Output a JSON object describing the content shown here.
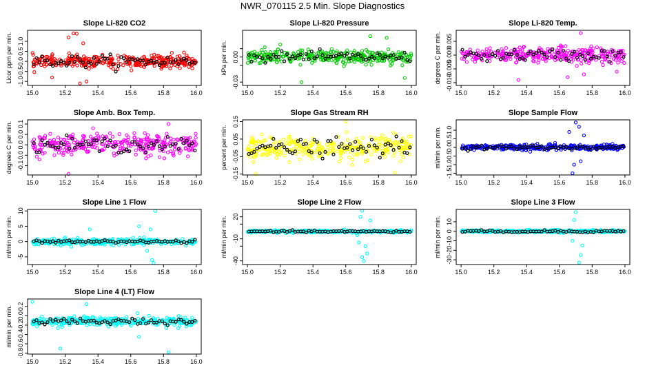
{
  "page_title": "NWR_070115  2.5 Min. Slope Diagnostics",
  "chart_data": [
    {
      "type": "scatter",
      "title": "Slope Li-820 CO2",
      "ylabel": "Licor ppm per min.",
      "color": "#ff0000",
      "xlim": [
        14.97,
        16.03
      ],
      "ylim": [
        -1.2,
        1.55
      ],
      "xticks": [
        15.0,
        15.2,
        15.4,
        15.6,
        15.8,
        16.0
      ],
      "xtick_labels": [
        "15.0",
        "15.2",
        "15.4",
        "15.6",
        "15.8",
        "16.0"
      ],
      "yticks": [
        -1.0,
        -0.5,
        0.0,
        0.5,
        1.0
      ],
      "ytick_labels": [
        "-1.0",
        "-0.5",
        "0.0",
        "0.5",
        "1.0"
      ],
      "spread": 0.28,
      "black_spread": 0.3,
      "outliers": [
        [
          15.25,
          1.4
        ],
        [
          15.27,
          1.38
        ],
        [
          15.29,
          -1.1
        ],
        [
          15.33,
          -1.0
        ],
        [
          15.22,
          1.2
        ],
        [
          15.31,
          0.9
        ],
        [
          15.12,
          -0.8
        ]
      ]
    },
    {
      "type": "scatter",
      "title": "Slope Li-820 Pressure",
      "ylabel": "kPa per min.",
      "color": "#00cc00",
      "xlim": [
        14.97,
        16.03
      ],
      "ylim": [
        -0.034,
        0.032
      ],
      "xticks": [
        15.0,
        15.2,
        15.4,
        15.6,
        15.8,
        16.0
      ],
      "xtick_labels": [
        "15.0",
        "15.2",
        "15.4",
        "15.6",
        "15.8",
        "16.0"
      ],
      "yticks": [
        -0.03,
        -0.01,
        0.0,
        0.01
      ],
      "ytick_labels": [
        "-0.03",
        "",
        "0.00",
        ""
      ],
      "spread": 0.007,
      "black_spread": 0.006,
      "outliers": [
        [
          15.33,
          -0.03
        ],
        [
          15.96,
          -0.025
        ],
        [
          15.75,
          0.025
        ],
        [
          15.85,
          0.023
        ],
        [
          15.2,
          0.015
        ]
      ]
    },
    {
      "type": "scatter",
      "title": "Slope Li-820 Temp.",
      "ylabel": "degrees C per min.",
      "color": "#ff00ff",
      "xlim": [
        14.97,
        16.03
      ],
      "ylim": [
        -0.011,
        0.009
      ],
      "xticks": [
        15.0,
        15.2,
        15.4,
        15.6,
        15.8,
        16.0
      ],
      "xtick_labels": [
        "15.0",
        "15.2",
        "15.4",
        "15.6",
        "15.8",
        "16.0"
      ],
      "yticks": [
        -0.01,
        -0.005,
        0.0,
        0.005
      ],
      "ytick_labels": [
        "-0.010",
        "-0.005",
        "0.000",
        "0.005"
      ],
      "spread": 0.0025,
      "black_spread": 0.0022,
      "outliers": [
        [
          15.73,
          0.008
        ],
        [
          15.35,
          -0.009
        ],
        [
          15.95,
          -0.006
        ],
        [
          15.65,
          -0.008
        ],
        [
          15.75,
          -0.007
        ]
      ]
    },
    {
      "type": "scatter",
      "title": "Slope Amb. Box Temp.",
      "ylabel": "degrees C per min.",
      "color": "#ff00ff",
      "xlim": [
        14.97,
        16.03
      ],
      "ylim": [
        -0.145,
        0.12
      ],
      "xticks": [
        15.0,
        15.2,
        15.4,
        15.6,
        15.8,
        16.0
      ],
      "xtick_labels": [
        "15.0",
        "15.2",
        "15.4",
        "15.6",
        "15.8",
        "16.0"
      ],
      "yticks": [
        -0.1,
        -0.05,
        0.0,
        0.05,
        0.1
      ],
      "ytick_labels": [
        "-0.1",
        "0.0",
        "0.0",
        "0.0",
        "0.1"
      ],
      "spread": 0.045,
      "black_spread": 0.035,
      "outliers": [
        [
          15.22,
          -0.14
        ],
        [
          15.83,
          0.1
        ],
        [
          15.37,
          0.08
        ]
      ]
    },
    {
      "type": "scatter",
      "title": "Slope Gas Stream RH",
      "ylabel": "percent per min.",
      "color": "#ffff00",
      "xlim": [
        14.97,
        16.03
      ],
      "ylim": [
        -0.155,
        0.16
      ],
      "xticks": [
        15.0,
        15.2,
        15.4,
        15.6,
        15.8,
        16.0
      ],
      "xtick_labels": [
        "15.0",
        "15.2",
        "15.4",
        "15.6",
        "15.8",
        "16.0"
      ],
      "yticks": [
        -0.15,
        -0.05,
        0.05,
        0.15
      ],
      "ytick_labels": [
        "-0.15",
        "-0.05",
        "0.05",
        "0.15"
      ],
      "spread": 0.06,
      "black_spread": 0.05,
      "outliers": [
        [
          15.05,
          -0.15
        ],
        [
          15.6,
          0.15
        ],
        [
          15.9,
          -0.14
        ]
      ]
    },
    {
      "type": "scatter",
      "title": "Slope Sample Flow",
      "ylabel": "ml/min per min.",
      "color": "#0000ff",
      "xlim": [
        14.97,
        16.03
      ],
      "ylim": [
        -1.6,
        1.6
      ],
      "xticks": [
        15.0,
        15.2,
        15.4,
        15.6,
        15.8,
        16.0
      ],
      "xtick_labels": [
        "15.0",
        "15.2",
        "15.4",
        "15.6",
        "15.8",
        "16.0"
      ],
      "yticks": [
        -1.5,
        -1.0,
        -0.5,
        0.0,
        0.5,
        1.0
      ],
      "ytick_labels": [
        "-1.5",
        "-1.0",
        "-0.5",
        "0.0",
        "0.5",
        "1.0"
      ],
      "spread": 0.15,
      "black_spread": 0.12,
      "outliers": [
        [
          15.7,
          1.45
        ],
        [
          15.72,
          1.2
        ],
        [
          15.68,
          -1.5
        ],
        [
          15.69,
          -1.0
        ],
        [
          15.73,
          -0.8
        ],
        [
          15.66,
          0.9
        ],
        [
          15.75,
          0.7
        ]
      ]
    },
    {
      "type": "scatter",
      "title": "Slope Line 1 Flow",
      "ylabel": "ml/min per min.",
      "color": "#00ffff",
      "xlim": [
        14.97,
        16.03
      ],
      "ylim": [
        -7.5,
        10.5
      ],
      "xticks": [
        15.0,
        15.2,
        15.4,
        15.6,
        15.8,
        16.0
      ],
      "xtick_labels": [
        "15.0",
        "15.2",
        "15.4",
        "15.6",
        "15.8",
        "16.0"
      ],
      "yticks": [
        -5,
        0,
        5,
        10
      ],
      "ytick_labels": [
        "-5",
        "0",
        "5",
        "10"
      ],
      "spread": 0.9,
      "black_spread": 0.6,
      "outliers": [
        [
          15.75,
          10
        ],
        [
          15.73,
          -6
        ],
        [
          15.74,
          -7
        ],
        [
          15.72,
          4
        ],
        [
          15.7,
          -3
        ],
        [
          15.65,
          5
        ],
        [
          15.35,
          4
        ]
      ]
    },
    {
      "type": "scatter",
      "title": "Slope Line 2 Flow",
      "ylabel": "ml/min per min.",
      "color": "#00ffff",
      "xlim": [
        14.97,
        16.03
      ],
      "ylim": [
        -45,
        30
      ],
      "xticks": [
        15.0,
        15.2,
        15.4,
        15.6,
        15.8,
        16.0
      ],
      "xtick_labels": [
        "15.0",
        "15.2",
        "15.4",
        "15.6",
        "15.8",
        "16.0"
      ],
      "yticks": [
        -40,
        -20,
        -10,
        10,
        20
      ],
      "ytick_labels": [
        "-40",
        "",
        "-10",
        "",
        "20"
      ],
      "spread": 1.5,
      "black_spread": 1.2,
      "outliers": [
        [
          15.7,
          28
        ],
        [
          15.69,
          20
        ],
        [
          15.68,
          -15
        ],
        [
          15.7,
          -35
        ],
        [
          15.72,
          -20
        ],
        [
          15.71,
          -40
        ],
        [
          15.73,
          -30
        ],
        [
          15.75,
          15
        ],
        [
          15.67,
          -5
        ]
      ]
    },
    {
      "type": "scatter",
      "title": "Slope Line 3 Flow",
      "ylabel": "ml/min per min.",
      "color": "#00ffff",
      "xlim": [
        14.97,
        16.03
      ],
      "ylim": [
        -35,
        23
      ],
      "xticks": [
        15.0,
        15.2,
        15.4,
        15.6,
        15.8,
        16.0
      ],
      "xtick_labels": [
        "15.0",
        "15.2",
        "15.4",
        "15.6",
        "15.8",
        "16.0"
      ],
      "yticks": [
        -30,
        -20,
        -10,
        0,
        10
      ],
      "ytick_labels": [
        "-30",
        "-20",
        "-10",
        "0",
        "10"
      ],
      "spread": 1.3,
      "black_spread": 1.1,
      "outliers": [
        [
          15.7,
          20
        ],
        [
          15.72,
          -33
        ],
        [
          15.73,
          -25
        ],
        [
          15.69,
          12
        ],
        [
          15.74,
          -15
        ],
        [
          15.68,
          -10
        ]
      ]
    },
    {
      "type": "scatter",
      "title": "Slope Line 4 (LT) Flow",
      "ylabel": "ml/min per min.",
      "color": "#00ffff",
      "xlim": [
        14.97,
        16.03
      ],
      "ylim": [
        -0.82,
        0.36
      ],
      "xticks": [
        15.0,
        15.2,
        15.4,
        15.6,
        15.8,
        16.0
      ],
      "xtick_labels": [
        "15.0",
        "15.2",
        "15.4",
        "15.6",
        "15.8",
        "16.0"
      ],
      "yticks": [
        -0.8,
        -0.6,
        -0.4,
        -0.2,
        0.0,
        0.2
      ],
      "ytick_labels": [
        "-0.8",
        "-0.6",
        "-0.4",
        "-0.2",
        "0.0",
        "0.2"
      ],
      "spread": 0.085,
      "black_spread": 0.07,
      "center": -0.12,
      "outliers": [
        [
          15.83,
          -0.78
        ],
        [
          15.17,
          -0.7
        ],
        [
          15.0,
          0.3
        ],
        [
          15.33,
          0.25
        ],
        [
          15.65,
          -0.45
        ]
      ]
    }
  ]
}
